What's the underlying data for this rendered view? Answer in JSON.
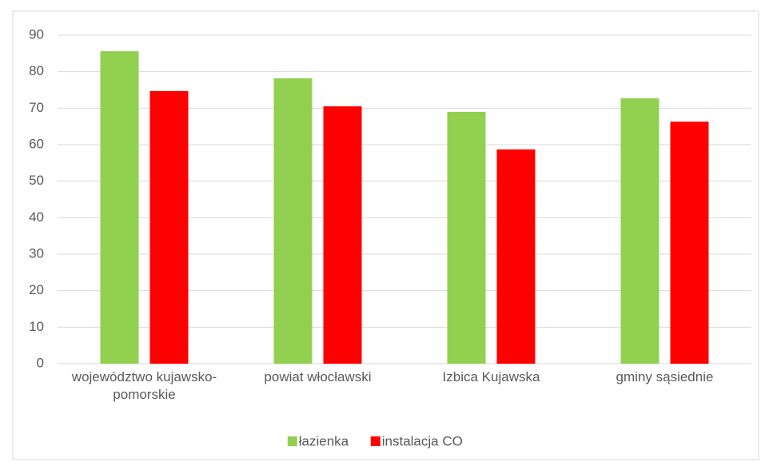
{
  "chart_data": {
    "type": "bar",
    "categories": [
      "województwo kujawsko-pomorskie",
      "powiat włocławski",
      "Izbica Kujawska",
      "gminy sąsiednie"
    ],
    "series": [
      {
        "name": "łazienka",
        "color": "#92d050",
        "values": [
          85.6,
          78.2,
          69.0,
          72.7
        ]
      },
      {
        "name": "instalacja CO",
        "color": "#ff0000",
        "values": [
          74.7,
          70.5,
          58.7,
          66.3
        ]
      }
    ],
    "ylim": [
      0,
      90
    ],
    "yticks": [
      0,
      10,
      20,
      30,
      40,
      50,
      60,
      70,
      80,
      90
    ],
    "grid": true,
    "legend": "bottom"
  }
}
